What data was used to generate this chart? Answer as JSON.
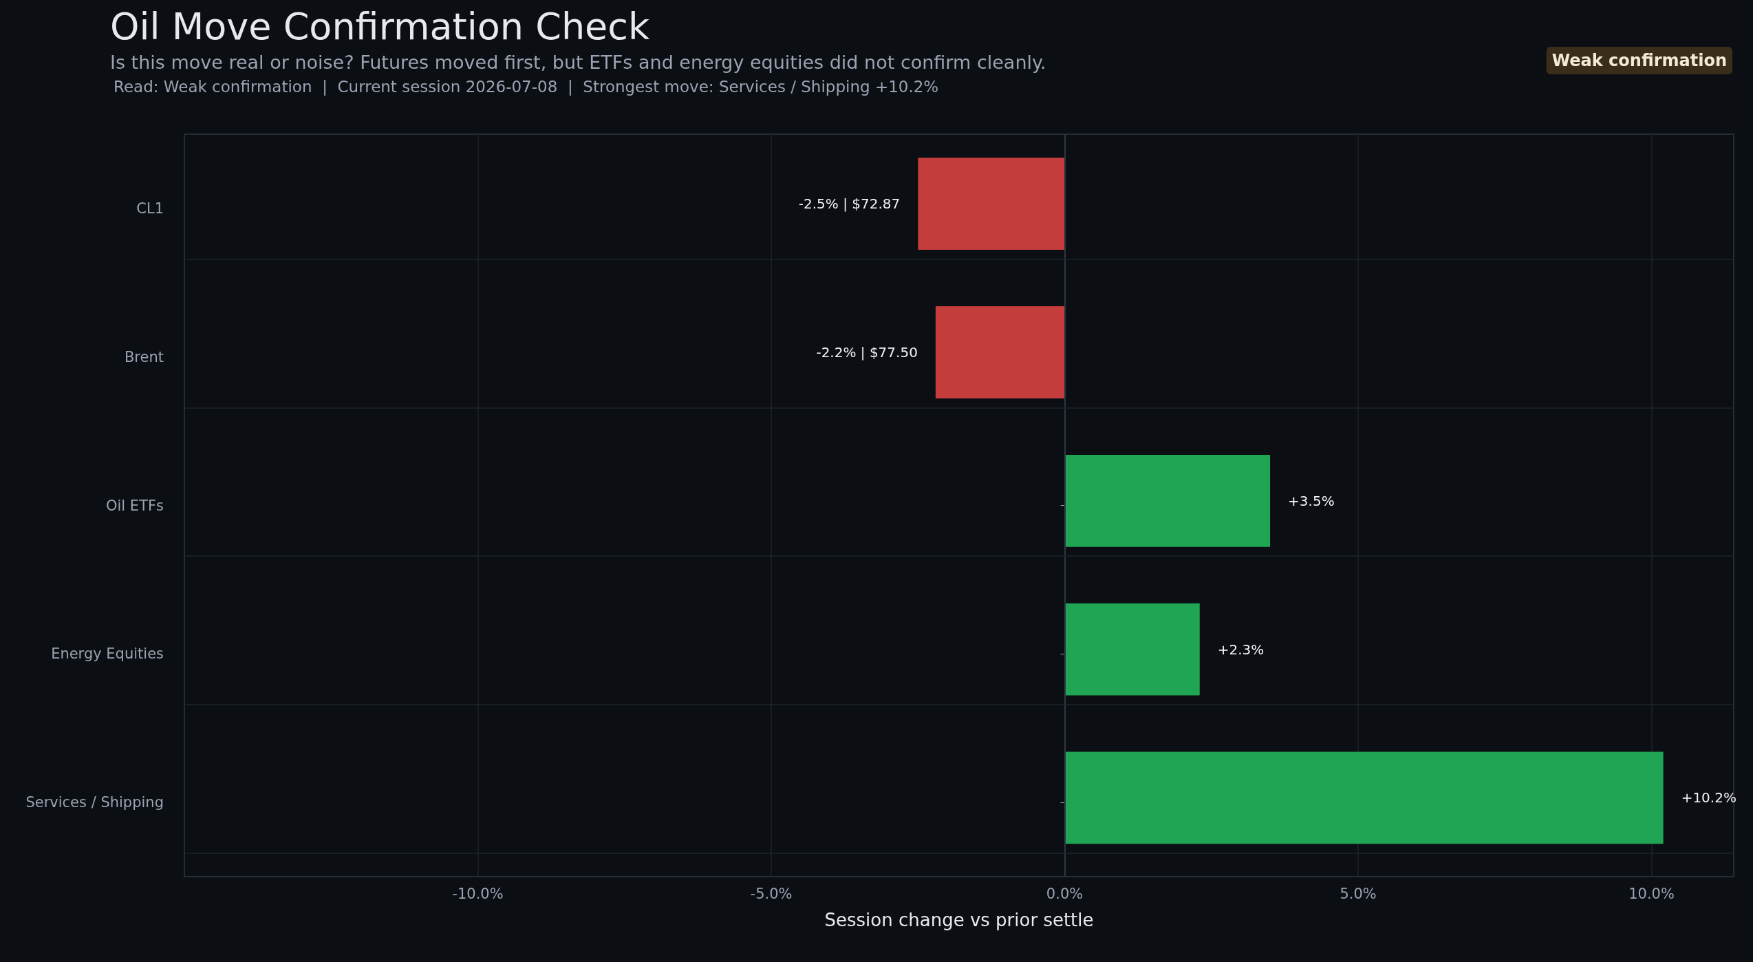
{
  "chart_data": {
    "type": "bar",
    "orientation": "horizontal",
    "title": "Oil Move Confirmation Check",
    "subtitle": "Is this move real or noise? Futures moved first, but ETFs and energy equities did not confirm cleanly.",
    "annotations": [
      "Read: Weak confirmation  |  Current session 2026-07-08  |  Strongest move: Services / Shipping +10.2%",
      "Weak confirmation"
    ],
    "xlabel": "Session change vs prior settle",
    "categories": [
      "CL1",
      "Brent",
      "Oil ETFs",
      "Energy Equities",
      "Services / Shipping"
    ],
    "values": [
      -2.5,
      -2.2,
      3.5,
      2.3,
      10.2
    ],
    "colors": [
      "#c43c3c",
      "#c43c3c",
      "#1fa553",
      "#1fa553",
      "#1fa553"
    ],
    "value_labels": [
      "-2.5% | $72.87",
      "-2.2% | $77.50",
      "+3.5%",
      "+2.3%",
      "+10.2%"
    ],
    "xlim": [
      -15,
      11.4
    ],
    "xticks": [
      {
        "value": -10,
        "label": "-10.0%"
      },
      {
        "value": -5,
        "label": "-5.0%"
      },
      {
        "value": 0,
        "label": "0.0%"
      },
      {
        "value": 5,
        "label": "5.0%"
      },
      {
        "value": 10,
        "label": "10.0%"
      }
    ],
    "grid": true
  }
}
